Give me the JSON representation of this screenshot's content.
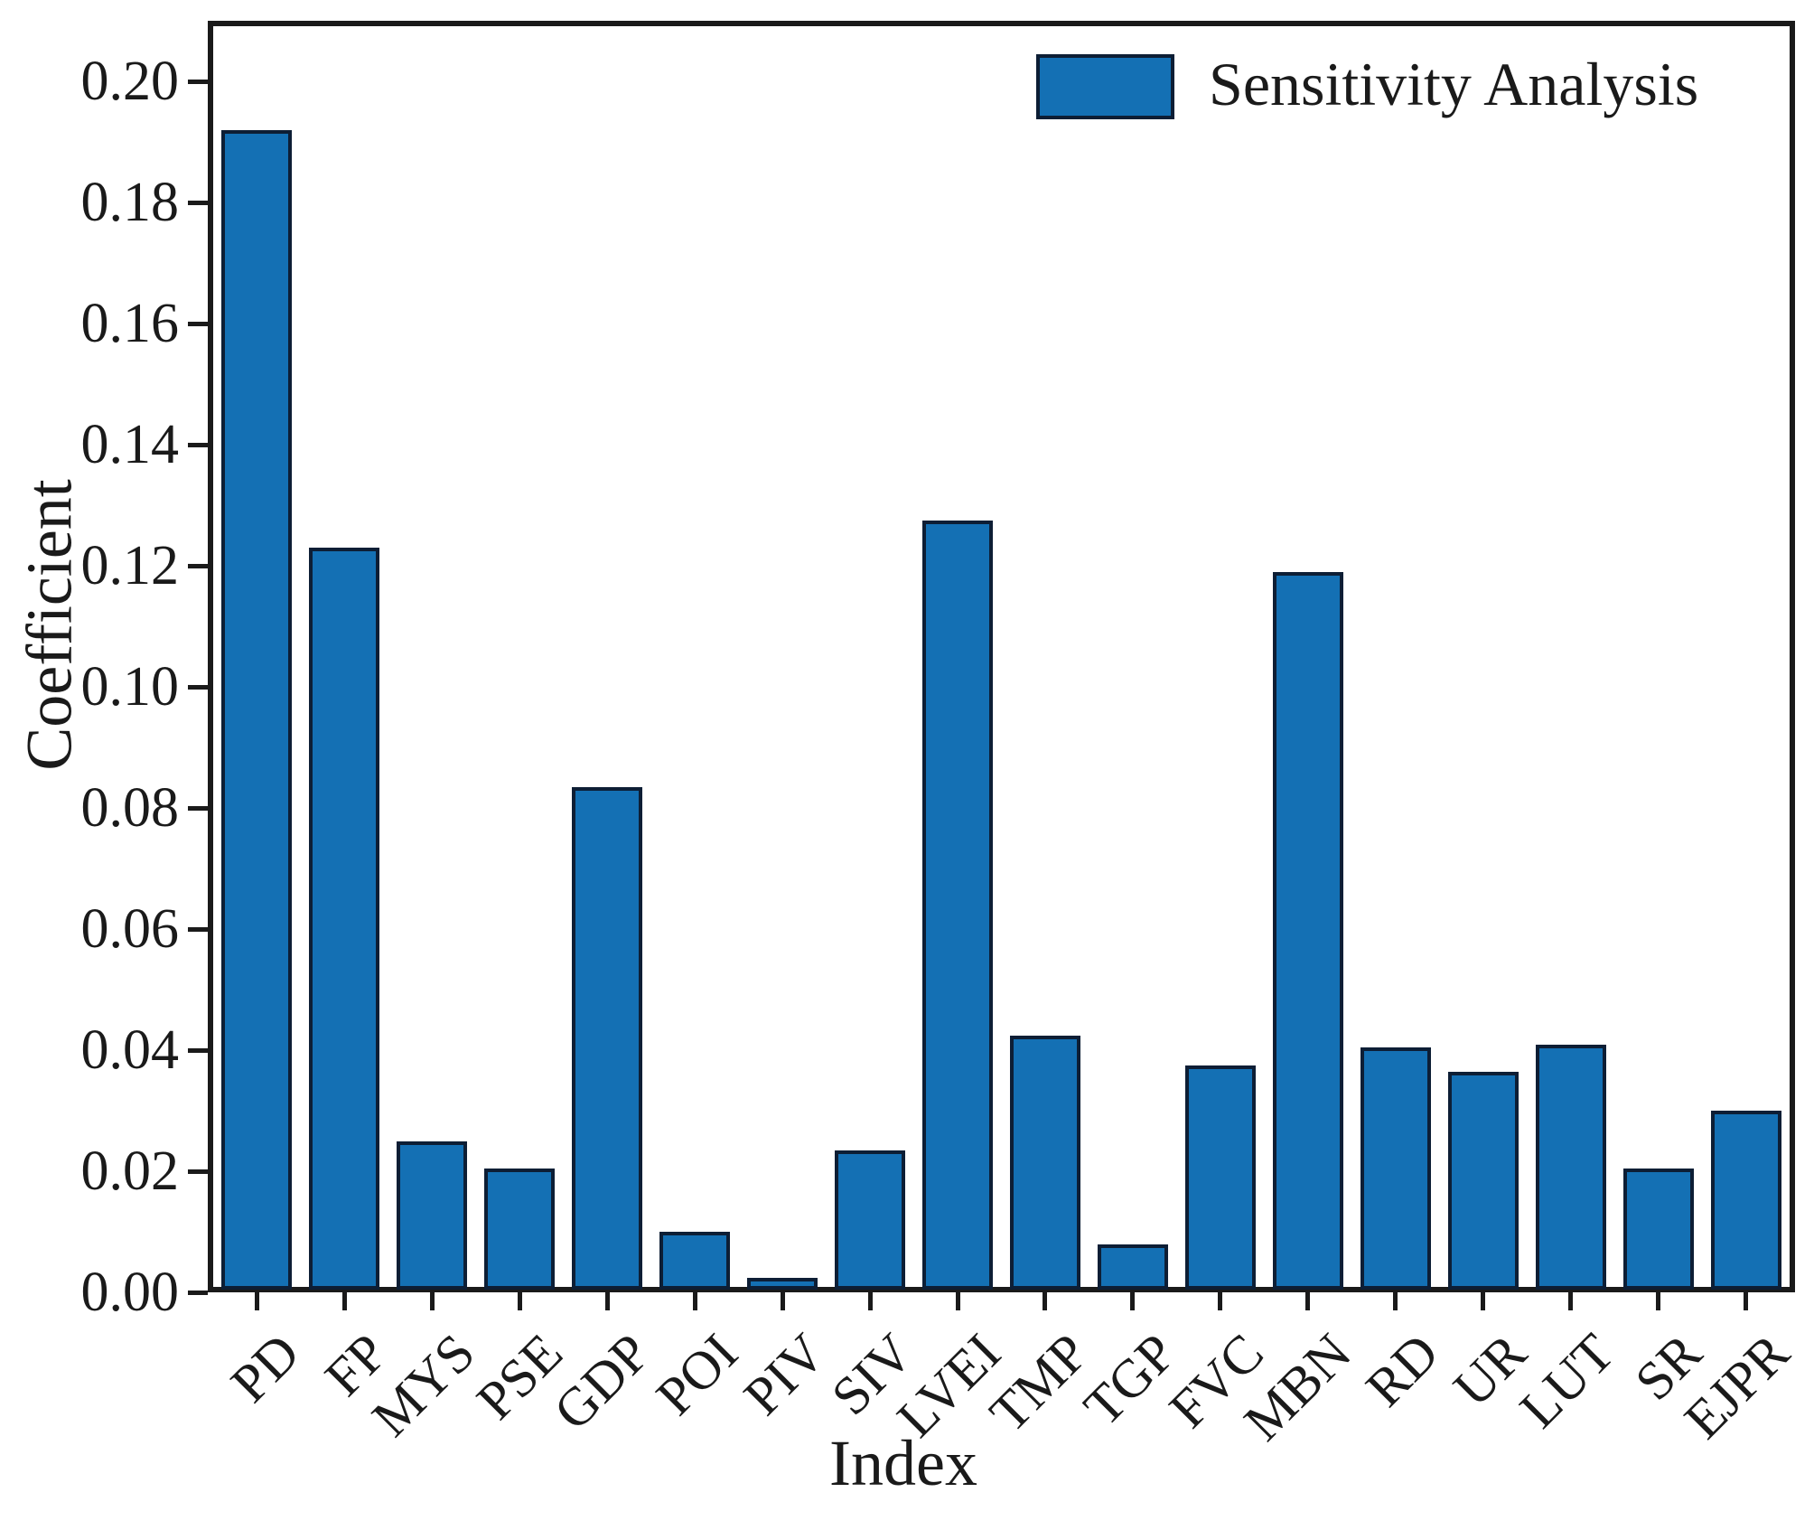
{
  "chart_data": {
    "type": "bar",
    "title": "",
    "xlabel": "Index",
    "ylabel": "Coefficient",
    "categories": [
      "PD",
      "FP",
      "MYS",
      "PSE",
      "GDP",
      "POI",
      "PIV",
      "SIV",
      "LVEI",
      "TMP",
      "TGP",
      "FVC",
      "MBN",
      "RD",
      "UR",
      "LUT",
      "SR",
      "EJPR"
    ],
    "values": [
      0.1915,
      0.1225,
      0.0245,
      0.02,
      0.083,
      0.0095,
      0.002,
      0.023,
      0.127,
      0.042,
      0.0075,
      0.037,
      0.1185,
      0.04,
      0.036,
      0.0405,
      0.02,
      0.0295
    ],
    "series_name": "Sensitivity Analysis",
    "legend": [
      "Sensitivity Analysis"
    ],
    "legend_position": "upper right",
    "ylim": [
      0,
      0.21
    ],
    "ytick_values": [
      0.0,
      0.02,
      0.04,
      0.06,
      0.08,
      0.1,
      0.12,
      0.14,
      0.16,
      0.18,
      0.2
    ],
    "ytick_labels": [
      "0.00",
      "0.02",
      "0.04",
      "0.06",
      "0.08",
      "0.10",
      "0.12",
      "0.14",
      "0.16",
      "0.18",
      "0.20"
    ],
    "grid": false,
    "colors": {
      "bar_fill": "#1470b4",
      "bar_edge": "#0d1e35",
      "axis": "#1a1a1a",
      "background": "#ffffff",
      "text": "#1a1a1a"
    }
  }
}
